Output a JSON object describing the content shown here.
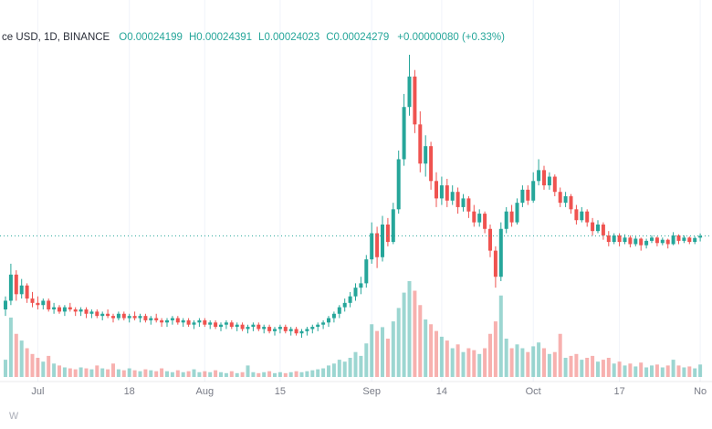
{
  "header": {
    "symbol_text": "ce USD, 1D, BINANCE",
    "ohlc": {
      "o_label": "O",
      "o_value": "0.00024199",
      "h_label": "H",
      "h_value": "0.00024391",
      "l_label": "L",
      "l_value": "0.00024023",
      "c_label": "C",
      "c_value": "0.00024279",
      "change_text": "+0.00000080 (+0.33%)"
    }
  },
  "watermark_text": "w",
  "colors": {
    "up": "#26a69a",
    "down": "#ef5350",
    "volume_opacity": 0.45,
    "price_line": "#26a69a",
    "axis_text": "#787b86",
    "grid": "#f0f3fa"
  },
  "chart_data": {
    "type": "candlestick",
    "title": "ce USD, 1D, BINANCE",
    "legend_position": "top-left",
    "grid": "vertical-only",
    "price_unit": "prices stored as USD x 100000 (e.g. 24.279 = 0.00024279)",
    "current_price": 24.279,
    "current_price_display": "0.00024279",
    "ylim_implied": [
      19.6,
      32.6
    ],
    "x_axis_note": "daily candles; tick index = candle offset from left edge",
    "x_axis_ticks": [
      {
        "label": "Jul",
        "index": 6
      },
      {
        "label": "18",
        "index": 23
      },
      {
        "label": "Aug",
        "index": 37
      },
      {
        "label": "15",
        "index": 51
      },
      {
        "label": "Sep",
        "index": 68
      },
      {
        "label": "14",
        "index": 81
      },
      {
        "label": "Oct",
        "index": 98
      },
      {
        "label": "17",
        "index": 114
      },
      {
        "label": "No",
        "index": 129
      }
    ],
    "candles": [
      [
        20.9,
        21.5,
        20.6,
        21.3,
        18
      ],
      [
        21.3,
        23.0,
        21.1,
        22.5,
        62
      ],
      [
        22.5,
        22.7,
        21.3,
        21.6,
        45
      ],
      [
        21.6,
        22.3,
        21.4,
        22.0,
        38
      ],
      [
        22.0,
        22.1,
        21.2,
        21.4,
        30
      ],
      [
        21.4,
        21.7,
        21.0,
        21.2,
        24
      ],
      [
        21.2,
        21.5,
        20.9,
        21.1,
        20
      ],
      [
        21.1,
        21.4,
        20.9,
        21.3,
        16
      ],
      [
        21.3,
        21.4,
        20.8,
        20.9,
        22
      ],
      [
        20.9,
        21.2,
        20.7,
        21.0,
        14
      ],
      [
        21.0,
        21.1,
        20.7,
        20.8,
        12
      ],
      [
        20.8,
        21.1,
        20.6,
        21.0,
        10
      ],
      [
        21.0,
        21.2,
        20.8,
        20.9,
        9
      ],
      [
        20.9,
        21.0,
        20.6,
        20.8,
        8
      ],
      [
        20.8,
        21.0,
        20.6,
        20.9,
        10
      ],
      [
        20.9,
        21.0,
        20.5,
        20.7,
        9
      ],
      [
        20.7,
        20.9,
        20.5,
        20.8,
        8
      ],
      [
        20.8,
        20.9,
        20.5,
        20.6,
        12
      ],
      [
        20.6,
        20.8,
        20.4,
        20.7,
        9
      ],
      [
        20.7,
        20.9,
        20.5,
        20.6,
        8
      ],
      [
        20.6,
        20.7,
        20.3,
        20.5,
        14
      ],
      [
        20.5,
        20.8,
        20.4,
        20.7,
        8
      ],
      [
        20.7,
        20.8,
        20.4,
        20.5,
        7
      ],
      [
        20.5,
        20.7,
        20.3,
        20.6,
        9
      ],
      [
        20.6,
        20.8,
        20.4,
        20.5,
        7
      ],
      [
        20.5,
        20.7,
        20.3,
        20.6,
        6
      ],
      [
        20.6,
        20.7,
        20.3,
        20.4,
        8
      ],
      [
        20.4,
        20.6,
        20.2,
        20.5,
        7
      ],
      [
        20.5,
        20.7,
        20.3,
        20.4,
        6
      ],
      [
        20.4,
        20.5,
        20.1,
        20.3,
        9
      ],
      [
        20.3,
        20.5,
        20.1,
        20.4,
        6
      ],
      [
        20.4,
        20.6,
        20.2,
        20.5,
        5
      ],
      [
        20.5,
        20.6,
        20.2,
        20.3,
        7
      ],
      [
        20.3,
        20.5,
        20.1,
        20.4,
        5
      ],
      [
        20.4,
        20.5,
        20.1,
        20.2,
        6
      ],
      [
        20.2,
        20.4,
        20.0,
        20.3,
        8
      ],
      [
        20.3,
        20.5,
        20.1,
        20.4,
        5
      ],
      [
        20.4,
        20.5,
        20.1,
        20.2,
        6
      ],
      [
        20.2,
        20.4,
        20.0,
        20.3,
        5
      ],
      [
        20.3,
        20.4,
        20.0,
        20.1,
        7
      ],
      [
        20.1,
        20.3,
        19.9,
        20.2,
        5
      ],
      [
        20.2,
        20.4,
        20.0,
        20.3,
        4
      ],
      [
        20.3,
        20.4,
        20.0,
        20.1,
        6
      ],
      [
        20.1,
        20.3,
        19.9,
        20.2,
        4
      ],
      [
        20.2,
        20.3,
        19.9,
        20.0,
        5
      ],
      [
        20.0,
        20.2,
        19.8,
        20.1,
        12
      ],
      [
        20.1,
        20.3,
        19.9,
        20.2,
        5
      ],
      [
        20.2,
        20.3,
        19.9,
        20.0,
        4
      ],
      [
        20.0,
        20.2,
        19.8,
        20.1,
        5
      ],
      [
        20.1,
        20.2,
        19.8,
        19.9,
        6
      ],
      [
        19.9,
        20.1,
        19.7,
        20.0,
        4
      ],
      [
        20.0,
        20.2,
        19.8,
        20.1,
        5
      ],
      [
        20.1,
        20.2,
        19.8,
        19.9,
        4
      ],
      [
        19.9,
        20.1,
        19.7,
        20.0,
        5
      ],
      [
        20.0,
        20.1,
        19.7,
        19.8,
        6
      ],
      [
        19.8,
        20.0,
        19.6,
        19.9,
        5
      ],
      [
        19.9,
        20.1,
        19.7,
        20.0,
        6
      ],
      [
        20.0,
        20.2,
        19.8,
        20.1,
        7
      ],
      [
        20.1,
        20.3,
        19.9,
        20.2,
        8
      ],
      [
        20.2,
        20.4,
        20.0,
        20.3,
        9
      ],
      [
        20.3,
        20.6,
        20.1,
        20.5,
        12
      ],
      [
        20.5,
        20.8,
        20.3,
        20.7,
        14
      ],
      [
        20.7,
        21.1,
        20.5,
        21.0,
        18
      ],
      [
        21.0,
        21.4,
        20.8,
        21.2,
        16
      ],
      [
        21.2,
        21.7,
        21.0,
        21.5,
        20
      ],
      [
        21.5,
        22.1,
        21.3,
        21.9,
        26
      ],
      [
        21.9,
        22.4,
        21.6,
        22.1,
        22
      ],
      [
        22.1,
        23.4,
        21.9,
        23.2,
        35
      ],
      [
        23.2,
        24.9,
        23.0,
        24.4,
        55
      ],
      [
        24.4,
        24.7,
        22.8,
        23.3,
        48
      ],
      [
        23.3,
        25.2,
        23.1,
        24.8,
        52
      ],
      [
        24.8,
        25.1,
        23.8,
        24.0,
        40
      ],
      [
        24.0,
        25.8,
        23.9,
        25.5,
        58
      ],
      [
        25.5,
        28.2,
        25.3,
        27.8,
        72
      ],
      [
        27.8,
        30.8,
        27.5,
        30.2,
        88
      ],
      [
        30.2,
        32.6,
        29.8,
        31.6,
        100
      ],
      [
        31.6,
        31.9,
        29.0,
        29.4,
        90
      ],
      [
        29.4,
        30.0,
        27.2,
        27.6,
        75
      ],
      [
        27.6,
        28.9,
        27.0,
        28.4,
        60
      ],
      [
        28.4,
        28.6,
        26.4,
        26.8,
        55
      ],
      [
        26.8,
        27.2,
        25.6,
        26.0,
        48
      ],
      [
        26.0,
        27.0,
        25.7,
        26.6,
        42
      ],
      [
        26.6,
        26.9,
        25.6,
        25.9,
        38
      ],
      [
        25.9,
        26.6,
        25.7,
        26.3,
        30
      ],
      [
        26.3,
        26.5,
        25.3,
        25.6,
        34
      ],
      [
        25.6,
        26.2,
        25.4,
        26.0,
        26
      ],
      [
        26.0,
        26.1,
        25.1,
        25.4,
        30
      ],
      [
        25.4,
        25.7,
        24.7,
        24.9,
        28
      ],
      [
        24.9,
        25.5,
        24.7,
        25.3,
        24
      ],
      [
        25.3,
        25.4,
        24.4,
        24.6,
        30
      ],
      [
        24.6,
        24.8,
        23.3,
        23.6,
        45
      ],
      [
        23.6,
        23.8,
        21.9,
        22.4,
        58
      ],
      [
        22.4,
        24.9,
        22.2,
        24.6,
        85
      ],
      [
        24.6,
        25.6,
        24.4,
        25.4,
        40
      ],
      [
        25.4,
        25.7,
        24.7,
        24.9,
        30
      ],
      [
        24.9,
        26.0,
        24.8,
        25.8,
        34
      ],
      [
        25.8,
        26.6,
        25.6,
        26.4,
        30
      ],
      [
        26.4,
        26.6,
        25.7,
        25.9,
        26
      ],
      [
        25.9,
        27.2,
        25.8,
        26.8,
        32
      ],
      [
        26.8,
        27.8,
        26.6,
        27.3,
        36
      ],
      [
        27.3,
        27.5,
        26.4,
        26.6,
        30
      ],
      [
        26.6,
        27.2,
        26.4,
        27.0,
        24
      ],
      [
        27.0,
        27.1,
        26.1,
        26.3,
        26
      ],
      [
        26.3,
        26.5,
        25.6,
        25.8,
        45
      ],
      [
        25.8,
        26.3,
        25.6,
        26.1,
        20
      ],
      [
        26.1,
        26.2,
        25.3,
        25.5,
        22
      ],
      [
        25.5,
        25.7,
        24.8,
        25.0,
        24
      ],
      [
        25.0,
        25.6,
        24.9,
        25.4,
        18
      ],
      [
        25.4,
        25.5,
        24.7,
        24.9,
        20
      ],
      [
        24.9,
        25.1,
        24.3,
        24.5,
        22
      ],
      [
        24.5,
        25.0,
        24.4,
        24.8,
        16
      ],
      [
        24.8,
        24.9,
        24.1,
        24.3,
        18
      ],
      [
        24.3,
        24.5,
        23.8,
        24.0,
        20
      ],
      [
        24.0,
        24.4,
        23.9,
        24.3,
        14
      ],
      [
        24.3,
        24.4,
        23.8,
        24.0,
        16
      ],
      [
        24.0,
        24.35,
        23.9,
        24.2,
        12
      ],
      [
        24.2,
        24.3,
        23.75,
        23.9,
        14
      ],
      [
        23.9,
        24.25,
        23.8,
        24.15,
        11
      ],
      [
        24.15,
        24.2,
        23.6,
        23.85,
        15
      ],
      [
        23.85,
        24.15,
        23.7,
        24.05,
        10
      ],
      [
        24.05,
        24.3,
        23.95,
        24.2,
        12
      ],
      [
        24.2,
        24.25,
        23.8,
        23.95,
        13
      ],
      [
        23.95,
        24.2,
        23.85,
        24.1,
        10
      ],
      [
        24.1,
        24.15,
        23.7,
        23.9,
        12
      ],
      [
        23.9,
        24.45,
        23.85,
        24.3,
        18
      ],
      [
        24.3,
        24.35,
        23.9,
        24.05,
        12
      ],
      [
        24.05,
        24.3,
        23.95,
        24.2,
        10
      ],
      [
        24.2,
        24.25,
        23.9,
        24.0,
        11
      ],
      [
        24.0,
        24.25,
        23.9,
        24.18,
        9
      ],
      [
        24.199,
        24.391,
        24.023,
        24.279,
        13
      ]
    ]
  }
}
